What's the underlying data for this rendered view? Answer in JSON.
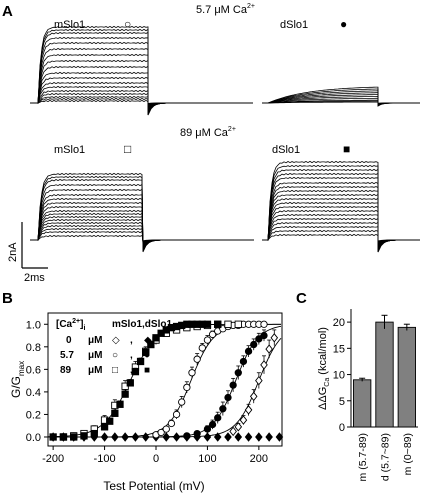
{
  "panel_a": {
    "letter": "A",
    "cond_top": {
      "text": "5.7 μM Ca",
      "sup": "2+"
    },
    "cond_bottom": {
      "text": "89 μM Ca",
      "sup": "2+"
    },
    "traces": {
      "tl": {
        "label": "mSlo1",
        "symbol": "○",
        "amplitudes": [
          2,
          4,
          6,
          9,
          12,
          16,
          20,
          25,
          30,
          36,
          42,
          48,
          54,
          60,
          65,
          70,
          73,
          76
        ]
      },
      "tr": {
        "label": "dSlo1",
        "symbol": "●",
        "amplitudes": [
          1,
          2,
          3,
          5,
          7,
          9,
          11,
          13,
          15,
          17
        ]
      },
      "bl": {
        "label": "mSlo1",
        "symbol": "□",
        "amplitudes": [
          4,
          8,
          11,
          14,
          17,
          20,
          23,
          26,
          29,
          33,
          37,
          41,
          45,
          50,
          55,
          60,
          63,
          66
        ]
      },
      "br": {
        "label": "dSlo1",
        "symbol": "■",
        "amplitudes": [
          5,
          9,
          13,
          17,
          21,
          25,
          29,
          33,
          37,
          41,
          45,
          49,
          53,
          57,
          62,
          66,
          70,
          74,
          78
        ]
      }
    },
    "scale_bar": {
      "current": "2nA",
      "time": "2ms"
    },
    "colors": {
      "trace": "#000000"
    }
  },
  "chart_data": [
    {
      "type": "scatter",
      "panel": "B",
      "ylabel": "G/G",
      "ylabel_sub": "max",
      "xlabel": "Test Potential (mV)",
      "xlim": [
        -210,
        245
      ],
      "ylim": [
        -0.08,
        1.1
      ],
      "xticks": [
        -200,
        -100,
        0,
        100,
        200
      ],
      "yticks": [
        0.0,
        0.2,
        0.4,
        0.6,
        0.8,
        1.0
      ],
      "ytick_labels": [
        "0.0",
        "0.2",
        "0.4",
        "0.6",
        "0.8",
        "1.0"
      ],
      "legend": {
        "ca_text": "[Ca",
        "ca_sup": "2+",
        "ca_close": "]",
        "ca_sub": "i",
        "header": "mSlo1,dSlo1",
        "unit": "μM",
        "rows": [
          {
            "value": "0",
            "symbols": [
              "◇",
              "◆"
            ]
          },
          {
            "value": "5.7",
            "symbols": [
              "○",
              "●"
            ]
          },
          {
            "value": "89",
            "symbols": [
              "□",
              "■"
            ]
          }
        ]
      },
      "series": [
        {
          "marker": "diamond-open",
          "x": [
            150,
            160,
            170,
            180,
            190,
            200,
            210,
            220,
            230
          ],
          "y": [
            0.05,
            0.09,
            0.15,
            0.24,
            0.36,
            0.5,
            0.64,
            0.78,
            0.88
          ],
          "err": [
            0.02,
            0.03,
            0.04,
            0.05,
            0.06,
            0.07,
            0.08,
            0.08,
            0.07
          ]
        },
        {
          "marker": "diamond-filled",
          "x": [
            -200,
            -180,
            -160,
            -140,
            -120,
            -100,
            -80,
            -60,
            -40,
            -20,
            0,
            20,
            40,
            60,
            80,
            100,
            120,
            140,
            160,
            180,
            200,
            220,
            240
          ],
          "y": [
            0,
            0,
            0,
            0,
            0,
            0,
            0,
            0,
            0,
            0,
            0,
            0,
            0,
            0,
            0,
            0,
            0,
            0,
            0,
            0,
            0,
            0,
            0
          ],
          "err": []
        },
        {
          "marker": "circle-open",
          "x": [
            0,
            10,
            20,
            30,
            40,
            50,
            60,
            70,
            80,
            90,
            100,
            110,
            120,
            130,
            140,
            150,
            160,
            170,
            180,
            190,
            200,
            210
          ],
          "y": [
            0.02,
            0.04,
            0.07,
            0.12,
            0.2,
            0.31,
            0.44,
            0.57,
            0.69,
            0.79,
            0.86,
            0.91,
            0.94,
            0.96,
            0.98,
            0.99,
            0.99,
            1.0,
            1.0,
            1.0,
            1.0,
            1.0
          ],
          "err": [
            0.01,
            0.01,
            0.02,
            0.03,
            0.04,
            0.05,
            0.05,
            0.05,
            0.05,
            0.04,
            0.04,
            0.03,
            0.03,
            0.02,
            0.02,
            0.02,
            0.02,
            0.01,
            0.01,
            0.01,
            0.01,
            0.01
          ]
        },
        {
          "marker": "circle-filled",
          "x": [
            60,
            80,
            100,
            110,
            120,
            130,
            140,
            150,
            160,
            170,
            180,
            190,
            200,
            210
          ],
          "y": [
            0.01,
            0.03,
            0.07,
            0.11,
            0.17,
            0.25,
            0.35,
            0.46,
            0.57,
            0.67,
            0.76,
            0.82,
            0.87,
            0.9
          ],
          "err": [
            0.01,
            0.02,
            0.03,
            0.04,
            0.05,
            0.06,
            0.06,
            0.06,
            0.06,
            0.05,
            0.05,
            0.05,
            0.05,
            0.05
          ]
        },
        {
          "marker": "square-open",
          "x": [
            -180,
            -160,
            -140,
            -120,
            -100,
            -80,
            -60,
            -40,
            -20,
            0,
            20,
            40,
            60,
            80,
            100,
            120,
            140,
            160
          ],
          "y": [
            0.0,
            0.01,
            0.03,
            0.07,
            0.15,
            0.28,
            0.45,
            0.62,
            0.76,
            0.86,
            0.92,
            0.95,
            0.97,
            0.98,
            0.99,
            1.0,
            1.0,
            1.0
          ],
          "err": [
            0.01,
            0.01,
            0.02,
            0.03,
            0.04,
            0.05,
            0.05,
            0.05,
            0.04,
            0.04,
            0.03,
            0.03,
            0.02,
            0.02,
            0.02,
            0.02,
            0.02,
            0.02
          ]
        },
        {
          "marker": "square-filled",
          "x": [
            -200,
            -180,
            -160,
            -140,
            -120,
            -100,
            -90,
            -80,
            -70,
            -60,
            -50,
            -40,
            -30,
            -20,
            -10,
            0,
            10,
            20,
            30,
            40,
            50,
            60,
            70,
            80,
            90,
            100,
            120
          ],
          "y": [
            0.0,
            0.0,
            0.0,
            0.01,
            0.03,
            0.09,
            0.14,
            0.21,
            0.29,
            0.38,
            0.48,
            0.58,
            0.67,
            0.75,
            0.82,
            0.88,
            0.92,
            0.95,
            0.97,
            0.98,
            0.99,
            1.0,
            1.0,
            1.0,
            1.0,
            1.0,
            1.0
          ],
          "err": [
            0.01,
            0.01,
            0.01,
            0.01,
            0.02,
            0.02,
            0.02,
            0.03,
            0.03,
            0.03,
            0.03,
            0.03,
            0.03,
            0.03,
            0.02,
            0.02,
            0.02,
            0.02,
            0.01,
            0.01,
            0.01,
            0.01,
            0.01,
            0.01,
            0.01,
            0.01,
            0.01
          ]
        }
      ],
      "curves": [
        {
          "v_half": -50,
          "slope": 26
        },
        {
          "v_half": 68,
          "slope": 22
        },
        {
          "v_half": 155,
          "slope": 22
        },
        {
          "v_half": 200,
          "slope": 22
        }
      ]
    },
    {
      "type": "bar",
      "panel": "C",
      "ylabel": "ΔΔG",
      "ylabel_sub": "Ca",
      "ylabel_unit": "(kcal/mol)",
      "categories": [
        "m (5.7-89)",
        "d (5.7~89)",
        "m (0~89)"
      ],
      "values": [
        9,
        20,
        19
      ],
      "errors": [
        0.3,
        1.3,
        0.6
      ],
      "ylim": [
        0,
        22.5
      ],
      "yticks": [
        0,
        5,
        10,
        15,
        20
      ],
      "bar_color": "#808080"
    }
  ]
}
